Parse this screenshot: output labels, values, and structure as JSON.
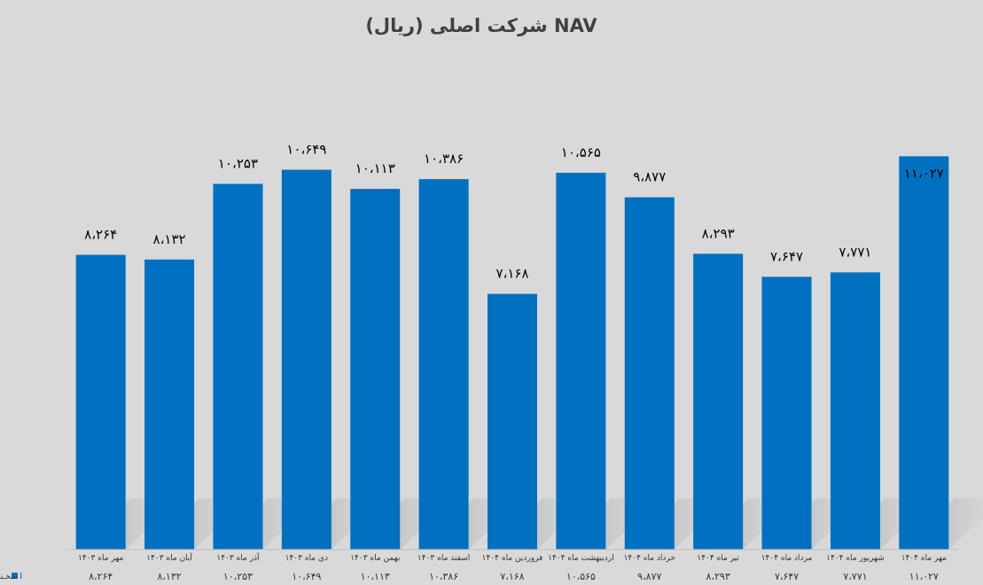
{
  "chart_data": {
    "type": "bar",
    "title": "NAV شرکت اصلی (ریال)",
    "categories": [
      "مهر ماه ۱۴۰۳",
      "آبان ماه ۱۴۰۳",
      "آذر ماه ۱۴۰۳",
      "دی ماه ۱۴۰۳",
      "بهمن ماه ۱۴۰۳",
      "اسفند ماه ۱۴۰۳",
      "فروردین ماه ۱۴۰۴",
      "اردیبهشت ماه ۱۴۰۴",
      "خرداد ماه ۱۴۰۴",
      "تیر ماه ۱۴۰۴",
      "مرداد ماه ۱۴۰۴",
      "شهریور ماه ۱۴۰۴",
      "مهر ماه ۱۴۰۴"
    ],
    "series": [
      {
        "name": "ا سخـنـخت",
        "values": [
          8264,
          8132,
          10253,
          10649,
          10113,
          10386,
          7168,
          10565,
          9877,
          8293,
          7647,
          7771,
          11027
        ],
        "labels": [
          "۸،۲۶۴",
          "۸،۱۳۲",
          "۱۰،۲۵۳",
          "۱۰،۶۴۹",
          "۱۰،۱۱۳",
          "۱۰،۳۸۶",
          "۷،۱۶۸",
          "۱۰،۵۶۵",
          "۹،۸۷۷",
          "۸،۲۹۳",
          "۷،۶۴۷",
          "۷،۷۷۱",
          "۱۱،۰۲۷"
        ],
        "color": "#0070c0"
      }
    ],
    "ylim": [
      0,
      12700
    ],
    "grid": false,
    "legend_position": "bottom-left",
    "data_table": true,
    "background": "#d9d9d9"
  }
}
